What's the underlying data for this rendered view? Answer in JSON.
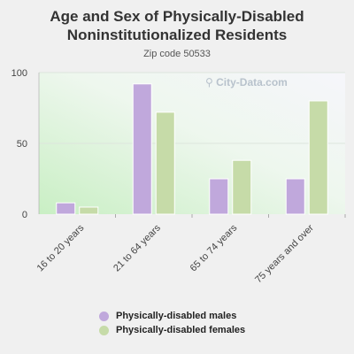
{
  "chart_data": {
    "type": "bar",
    "title_line1": "Age and Sex of Physically-Disabled",
    "title_line2": "Noninstitutionalized Residents",
    "subtitle": "Zip code 50533",
    "categories": [
      "16 to 20 years",
      "21 to 64 years",
      "65 to 74 years",
      "75 years and over"
    ],
    "series": [
      {
        "name": "Physically-disabled males",
        "color": "#c0a8dc",
        "values": [
          8,
          92,
          25,
          25
        ]
      },
      {
        "name": "Physically-disabled females",
        "color": "#c6dba8",
        "values": [
          5,
          72,
          38,
          80
        ]
      }
    ],
    "yticks": [
      0,
      50,
      100
    ],
    "ylim": [
      0,
      100
    ],
    "grid": true,
    "legend_position": "bottom"
  },
  "watermark": "City-Data.com",
  "watermark_icon": "magnifier-icon"
}
